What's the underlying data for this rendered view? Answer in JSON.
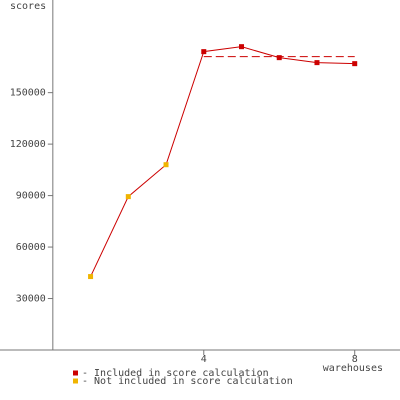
{
  "chart_data": {
    "type": "line",
    "y_label": "scores",
    "x_label": "warehouses",
    "x": [
      1,
      2,
      3,
      4,
      5,
      6,
      7,
      8
    ],
    "series": [
      {
        "name": "- Included in score calculation",
        "color": "#cc0000",
        "values": [
          null,
          null,
          null,
          173900,
          176800,
          170400,
          167500,
          166900
        ]
      },
      {
        "name": "- Not included in score calculation",
        "color": "#f0b400",
        "values": [
          42800,
          89400,
          108000,
          null,
          null,
          null,
          null,
          null
        ]
      }
    ],
    "line_color": "#cc0000",
    "reference_line": {
      "value": 171000,
      "x": [
        4,
        8
      ]
    },
    "xlim": [
      -1.4,
      9.2
    ],
    "xticks": [
      4,
      8
    ],
    "ylim": [
      0,
      204000
    ],
    "yticks": [
      30000,
      60000,
      90000,
      120000,
      150000
    ]
  }
}
